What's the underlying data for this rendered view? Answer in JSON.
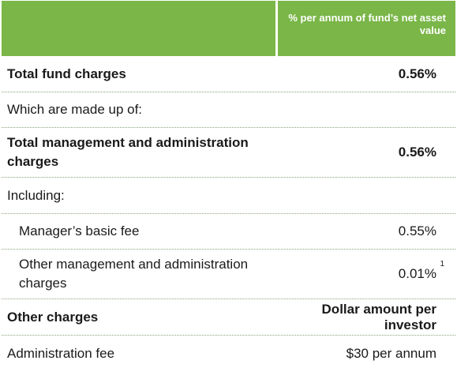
{
  "header": {
    "column_label": "% per annum of fund’s net asset value"
  },
  "rows": [
    {
      "label": "Total fund charges",
      "value": "0.56%"
    },
    {
      "label": "Which are made up of:",
      "value": ""
    },
    {
      "label": "Total management and administration charges",
      "value": "0.56%"
    },
    {
      "label": "Including:",
      "value": ""
    },
    {
      "label": "Manager’s basic fee",
      "value": "0.55%"
    },
    {
      "label": "Other management and administration charges",
      "value": "0.01%",
      "footnote": "1"
    },
    {
      "label": "Other charges",
      "value": "Dollar amount per investor"
    },
    {
      "label": "Administration fee",
      "value": "$30 per annum"
    }
  ]
}
